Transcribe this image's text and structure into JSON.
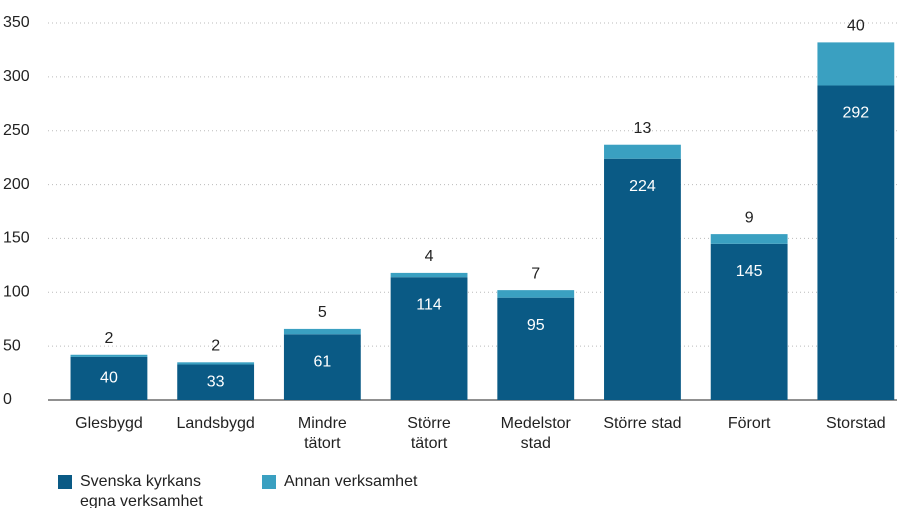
{
  "chart_data": {
    "type": "stacked_bar",
    "categories": [
      "Glesbygd",
      "Landsbygd",
      "Mindre\ntätort",
      "Större\ntätort",
      "Medelstor\nstad",
      "Större stad",
      "Förort",
      "Storstad"
    ],
    "series": [
      {
        "name": "Svenska kyrkans\negna verksamhet",
        "color": "#0a5a85",
        "values": [
          40,
          33,
          61,
          114,
          95,
          224,
          145,
          292
        ]
      },
      {
        "name": "Annan verksamhet",
        "color": "#3aa0c1",
        "values": [
          2,
          2,
          5,
          4,
          7,
          13,
          9,
          40
        ]
      }
    ],
    "ylim": [
      0,
      350
    ],
    "yticks": [
      0,
      50,
      100,
      150,
      200,
      250,
      300,
      350
    ],
    "grid": true
  }
}
